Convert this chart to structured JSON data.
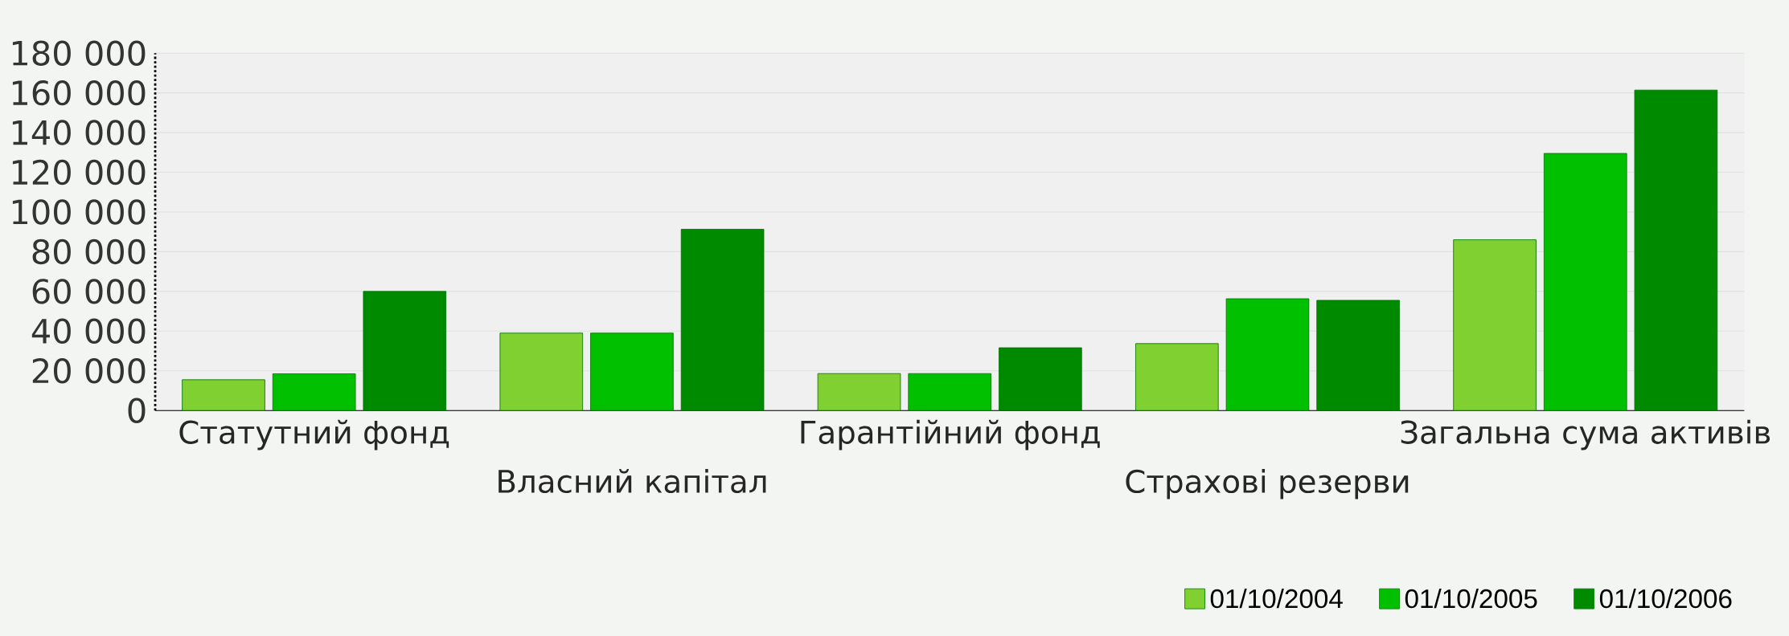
{
  "chart_data": {
    "type": "bar",
    "categories": [
      "Статутний фонд",
      "Власний капітал",
      "Гарантійний фонд",
      "Страхові резерви",
      "Загальна сума активів"
    ],
    "series": [
      {
        "name": "01/10/2004",
        "color": "#7fd030",
        "values": [
          15500,
          39000,
          18600,
          33700,
          86000
        ]
      },
      {
        "name": "01/10/2005",
        "color": "#00c000",
        "values": [
          18500,
          39000,
          18600,
          56300,
          129500
        ]
      },
      {
        "name": "01/10/2006",
        "color": "#008a00",
        "values": [
          60000,
          91300,
          31600,
          55500,
          161400
        ]
      }
    ],
    "ylim": [
      0,
      180000
    ],
    "yticks": [
      {
        "value": 0,
        "label": "0"
      },
      {
        "value": 20000,
        "label": "20 000"
      },
      {
        "value": 40000,
        "label": "40 000"
      },
      {
        "value": 60000,
        "label": "60 000"
      },
      {
        "value": 80000,
        "label": "80 000"
      },
      {
        "value": 100000,
        "label": "100 000"
      },
      {
        "value": 120000,
        "label": "120 000"
      },
      {
        "value": 140000,
        "label": "140 000"
      },
      {
        "value": 160000,
        "label": "160 000"
      },
      {
        "value": 180000,
        "label": "180 000"
      }
    ],
    "grid": true,
    "legend": "bottom right"
  }
}
